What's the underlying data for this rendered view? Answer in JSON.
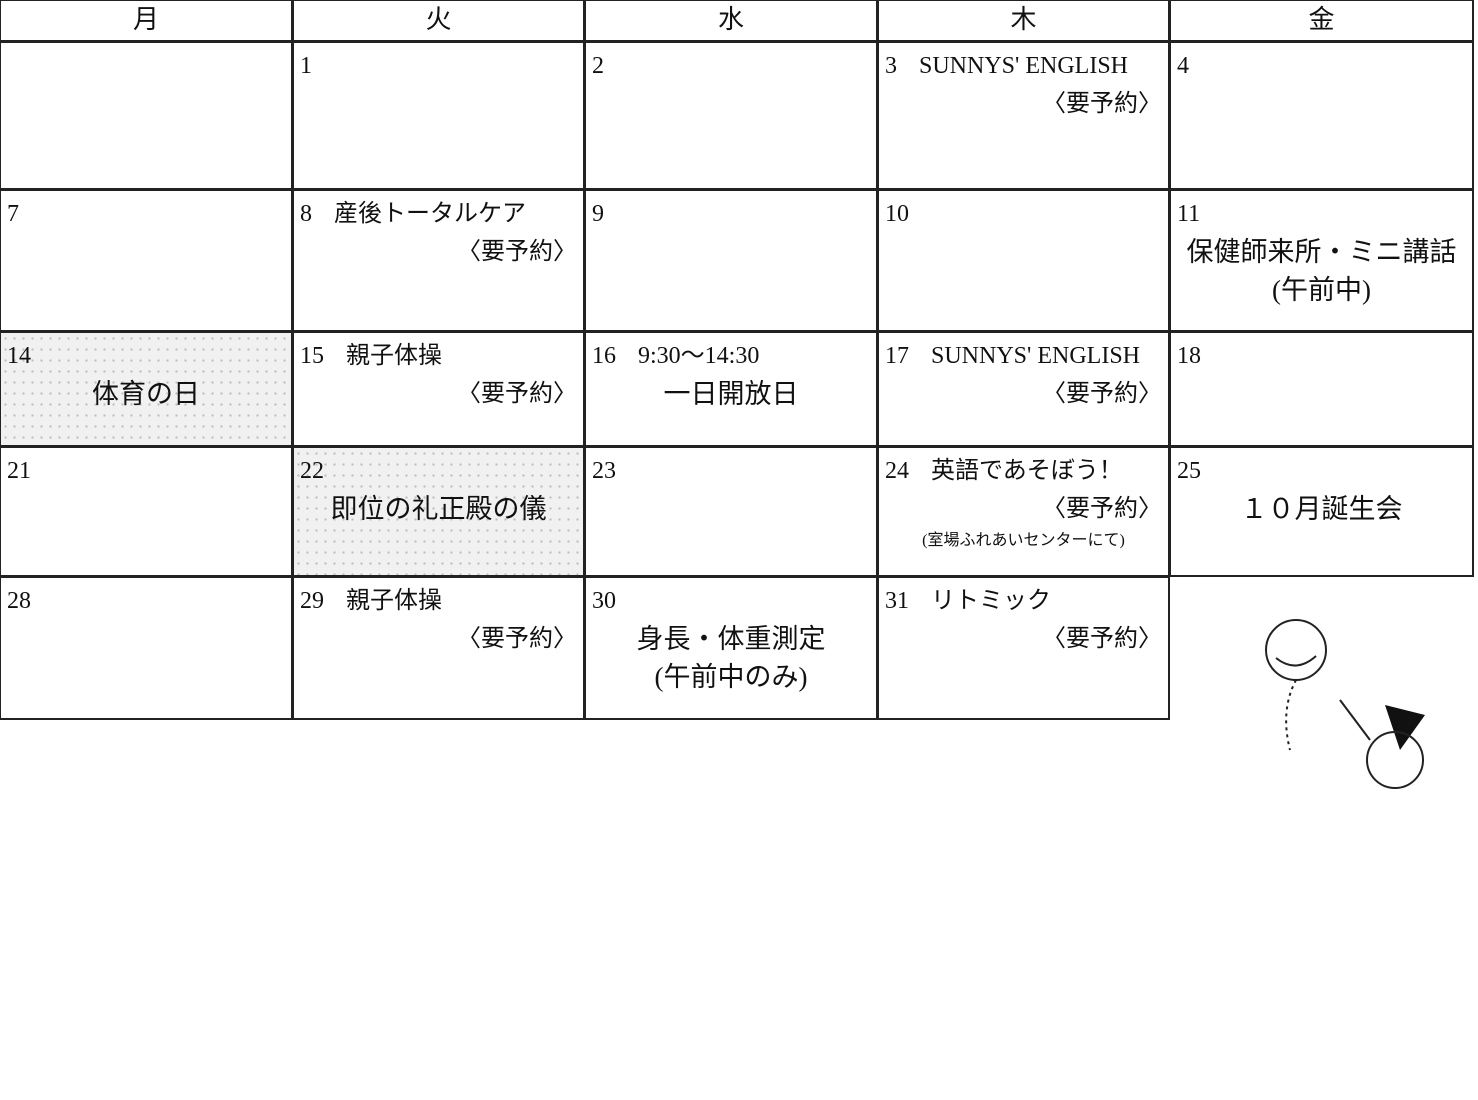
{
  "header": {
    "days": [
      "月",
      "火",
      "水",
      "木",
      "金"
    ]
  },
  "weeks": [
    [
      null,
      {
        "date": "1"
      },
      {
        "date": "2"
      },
      {
        "date": "3",
        "title": "SUNNYS' ENGLISH",
        "note": "〈要予約〉"
      },
      {
        "date": "4"
      }
    ],
    [
      {
        "date": "7"
      },
      {
        "date": "8",
        "title": "産後トータルケア",
        "note": "〈要予約〉"
      },
      {
        "date": "9"
      },
      {
        "date": "10"
      },
      {
        "date": "11",
        "lines": [
          "保健師来所・ミニ講話",
          "(午前中)"
        ]
      }
    ],
    [
      {
        "date": "14",
        "lines": [
          "体育の日"
        ],
        "holiday": true
      },
      {
        "date": "15",
        "title": "親子体操",
        "note": "〈要予約〉"
      },
      {
        "date": "16",
        "title": "9:30～14:30",
        "lines": [
          "一日開放日"
        ]
      },
      {
        "date": "17",
        "title": "SUNNYS' ENGLISH",
        "note": "〈要予約〉"
      },
      {
        "date": "18"
      }
    ],
    [
      {
        "date": "21"
      },
      {
        "date": "22",
        "lines": [
          "即位の礼正殿の儀"
        ],
        "holiday": true
      },
      {
        "date": "23"
      },
      {
        "date": "24",
        "title": "英語であそぼう！",
        "note": "〈要予約〉",
        "place": "(室場ふれあいセンターにて)"
      },
      {
        "date": "25",
        "lines": [
          "１０月誕生会"
        ]
      }
    ],
    [
      {
        "date": "28"
      },
      {
        "date": "29",
        "title": "親子体操",
        "note": "〈要予約〉"
      },
      {
        "date": "30",
        "lines": [
          "身長・体重測定",
          "(午前中のみ)"
        ]
      },
      {
        "date": "31",
        "title": "リトミック",
        "note": "〈要予約〉"
      },
      null
    ]
  ]
}
